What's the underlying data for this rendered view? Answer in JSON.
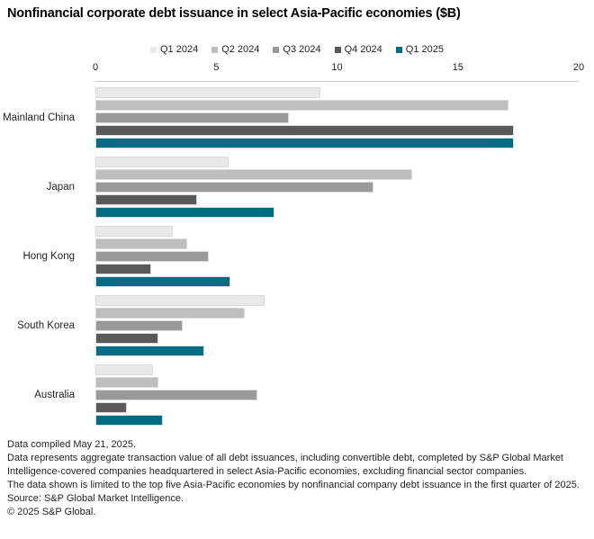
{
  "title": "Nonfinancial corporate debt issuance in select Asia-Pacific economies ($B)",
  "chart_data": {
    "type": "bar",
    "orientation": "horizontal",
    "title": "Nonfinancial corporate debt issuance in select Asia-Pacific economies ($B)",
    "categories": [
      "Mainland China",
      "Japan",
      "Hong Kong",
      "South Korea",
      "Australia"
    ],
    "series": [
      {
        "name": "Q1 2024",
        "color": "#e8e9ea",
        "values": [
          9.3,
          5.5,
          3.2,
          7.0,
          2.4
        ]
      },
      {
        "name": "Q2 2024",
        "color": "#bdbec0",
        "values": [
          17.1,
          13.1,
          3.8,
          6.2,
          2.6
        ]
      },
      {
        "name": "Q3 2024",
        "color": "#97999b",
        "values": [
          8.0,
          11.5,
          4.7,
          3.6,
          6.7
        ]
      },
      {
        "name": "Q4 2024",
        "color": "#58595b",
        "values": [
          17.3,
          4.2,
          2.3,
          2.6,
          1.3
        ]
      },
      {
        "name": "Q1 2025",
        "color": "#006d85",
        "values": [
          17.3,
          7.4,
          5.6,
          4.5,
          2.8
        ]
      }
    ],
    "xlim": [
      0,
      20
    ],
    "xticks": [
      0,
      5,
      10,
      15,
      20
    ],
    "xlabel": "",
    "ylabel": "",
    "legend_position": "top",
    "grid": false
  },
  "footer": {
    "lines": [
      "Data compiled May 21, 2025.",
      "Data represents aggregate transaction value of all debt issuances, including convertible debt, completed by S&P Global Market Intelligence-covered companies headquartered in select Asia-Pacific economies, excluding financial sector companies.",
      "The data shown is limited to the top five Asia-Pacific economies by nonfinancial company debt issuance in the first quarter of 2025.",
      "Source: S&P Global Market Intelligence.",
      "© 2025 S&P Global."
    ]
  }
}
